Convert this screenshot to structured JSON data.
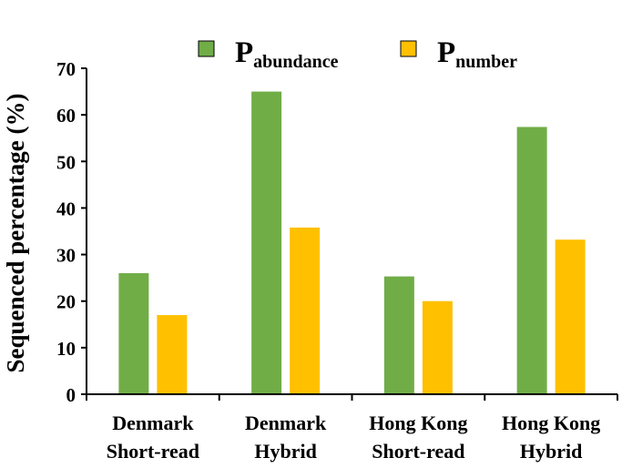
{
  "chart_data": {
    "type": "bar",
    "title": "",
    "xlabel": "",
    "ylabel": "Sequenced percentage (%)",
    "ylim": [
      0,
      70
    ],
    "yticks": [
      0,
      10,
      20,
      30,
      40,
      50,
      60,
      70
    ],
    "grid": false,
    "legend_position": "top",
    "categories": [
      {
        "line1": "Denmark",
        "line2": "Short-read"
      },
      {
        "line1": "Denmark",
        "line2": "Hybrid"
      },
      {
        "line1": "Hong Kong",
        "line2": "Short-read"
      },
      {
        "line1": "Hong Kong",
        "line2": "Hybrid"
      }
    ],
    "series": [
      {
        "symbol": "P",
        "subscript": "abundance",
        "color": "#70ad47",
        "values": [
          26,
          65,
          25.3,
          57.4
        ]
      },
      {
        "symbol": "P",
        "subscript": "number",
        "color": "#ffc000",
        "values": [
          17,
          35.8,
          20,
          33.2
        ]
      }
    ]
  }
}
